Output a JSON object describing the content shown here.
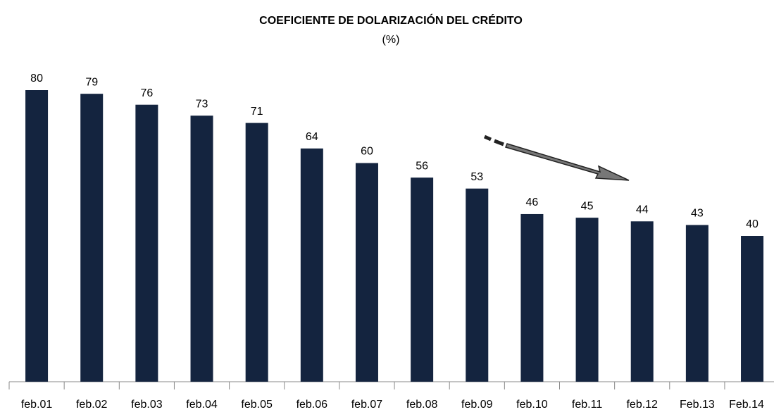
{
  "chart_data": {
    "type": "bar",
    "title": "COEFICIENTE DE DOLARIZACIÓN DEL CRÉDITO",
    "subtitle": "(%)",
    "categories": [
      "feb.01",
      "feb.02",
      "feb.03",
      "feb.04",
      "feb.05",
      "feb.06",
      "feb.07",
      "feb.08",
      "feb.09",
      "feb.10",
      "feb.11",
      "feb.12",
      "Feb.13",
      "Feb.14"
    ],
    "values": [
      80,
      79,
      76,
      73,
      71,
      64,
      60,
      56,
      53,
      46,
      45,
      44,
      43,
      40
    ],
    "color": "#14243f"
  }
}
